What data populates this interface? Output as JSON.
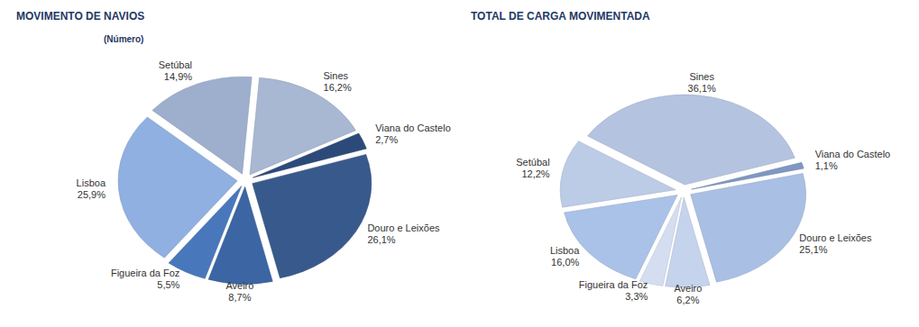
{
  "chart_data": [
    {
      "type": "pie",
      "title": "MOVIMENTO DE NAVIOS",
      "subtitle": "(Número)",
      "categories": [
        "Sines",
        "Viana do Castelo",
        "Douro e Leixões",
        "Aveiro",
        "Figueira da Foz",
        "Lisboa",
        "Setúbal"
      ],
      "values": [
        16.2,
        2.7,
        26.1,
        8.7,
        5.5,
        25.9,
        14.9
      ],
      "value_labels": [
        "16,2%",
        "2,7%",
        "26,1%",
        "8,7%",
        "5,5%",
        "25,9%",
        "14,9%"
      ],
      "colors": [
        "#a8b7d2",
        "#2b4a7a",
        "#38598c",
        "#3b65a3",
        "#4878bb",
        "#8fb0e0",
        "#9dafcc"
      ],
      "data_labels": true
    },
    {
      "type": "pie",
      "title": "TOTAL DE CARGA MOVIMENTADA",
      "categories": [
        "Sines",
        "Viana do Castelo",
        "Douro e Leixões",
        "Aveiro",
        "Figueira da Foz",
        "Lisboa",
        "Setúbal"
      ],
      "values": [
        36.1,
        1.1,
        25.1,
        6.2,
        3.3,
        16.0,
        12.2
      ],
      "value_labels": [
        "36,1%",
        "1,1%",
        "25,1%",
        "6,2%",
        "3,3%",
        "16,0%",
        "12,2%"
      ],
      "colors": [
        "#b4c3e0",
        "#7f97c2",
        "#a9bfe3",
        "#c5d3ec",
        "#d4def0",
        "#aac2e8",
        "#bccbe6"
      ],
      "data_labels": true
    }
  ]
}
